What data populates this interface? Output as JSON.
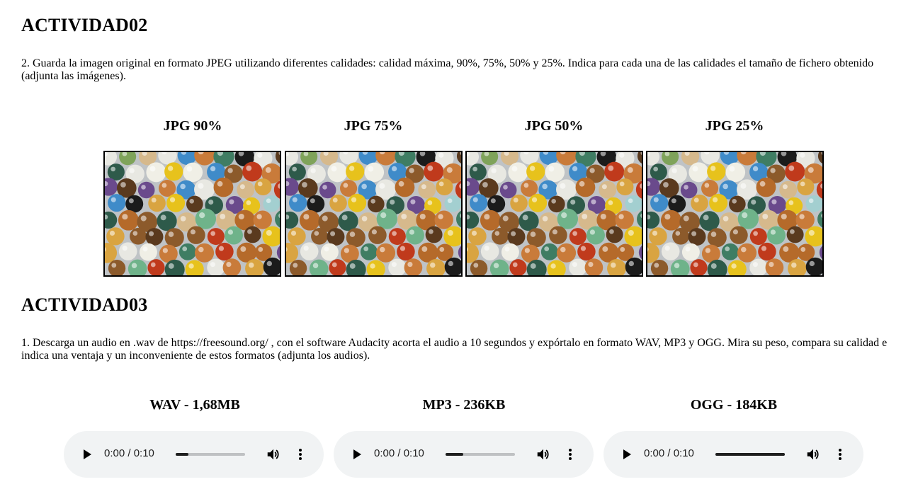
{
  "actividad02": {
    "heading": "ACTIVIDAD02",
    "task": "2. Guarda la imagen original en formato JPEG utilizando diferentes calidades: calidad máxima, 90%, 75%, 50% y 25%. Indica para cada una de las calidades el tamaño de fichero obtenido (adjunta las imágenes).",
    "images": [
      {
        "caption": "JPG 90%"
      },
      {
        "caption": "JPG 75%"
      },
      {
        "caption": "JPG 50%"
      },
      {
        "caption": "JPG 25%"
      }
    ]
  },
  "actividad03": {
    "heading": "ACTIVIDAD03",
    "task": "1. Descarga un audio en .wav de https://freesound.org/ , con el software Audacity acorta el audio a 10 segundos y expórtalo en formato WAV, MP3 y OGG. Mira su peso, compara su calidad e indica una ventaja y un inconveniente de estos formatos (adjunta los audios).",
    "audios": [
      {
        "caption": "WAV - 1,68MB",
        "time": "0:00 / 0:10",
        "progress": 0.18
      },
      {
        "caption": "MP3 - 236KB",
        "time": "0:00 / 0:10",
        "progress": 0.25
      },
      {
        "caption": "OGG - 184KB",
        "time": "0:00 / 0:10",
        "progress": 1.0
      }
    ]
  },
  "marble_colors": [
    "#d9a441",
    "#e7c21c",
    "#c03a1c",
    "#3f7d63",
    "#e8e8e2",
    "#1b1b1b",
    "#6a4a8c",
    "#8c5a2b",
    "#3f8bc9",
    "#6fb38a",
    "#a3cfd0",
    "#f0efe6",
    "#b56a2a",
    "#5a3a1e",
    "#d6b98c",
    "#7fa35a",
    "#2e5a4a",
    "#c97b3a"
  ]
}
